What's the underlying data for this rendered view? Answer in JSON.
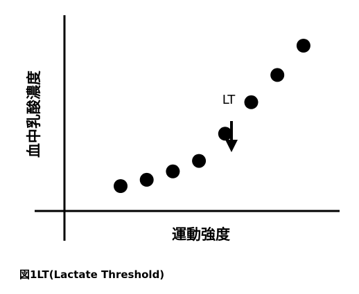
{
  "chart_data": {
    "type": "scatter",
    "title": "",
    "xlabel": "運動強度",
    "ylabel": "血中乳酸濃度",
    "grid": false,
    "legend": "none",
    "points": [
      {
        "x": 1,
        "y": 1.0
      },
      {
        "x": 2,
        "y": 1.3
      },
      {
        "x": 3,
        "y": 1.7
      },
      {
        "x": 4,
        "y": 2.2
      },
      {
        "x": 5,
        "y": 3.5
      },
      {
        "x": 6,
        "y": 5.0
      },
      {
        "x": 7,
        "y": 6.3
      },
      {
        "x": 8,
        "y": 7.7
      }
    ],
    "annotations": [
      {
        "text": "LT",
        "x": 4,
        "arrow": "down"
      }
    ],
    "colors": {
      "marker": "#000000",
      "axis": "#000000"
    }
  },
  "caption": "図1LT(Lactate Threshold)"
}
